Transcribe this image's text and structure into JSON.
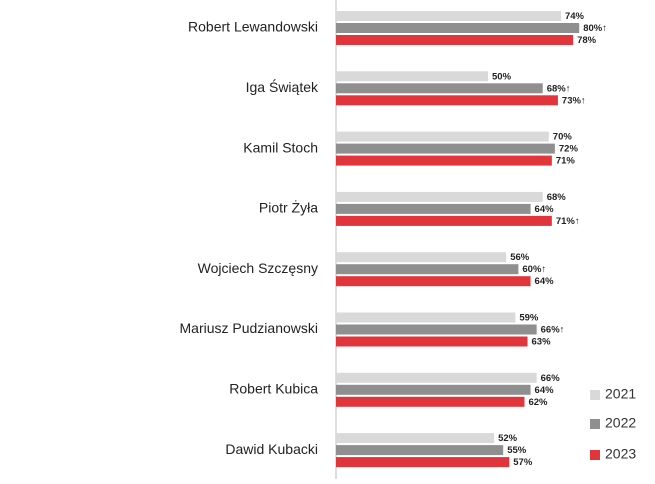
{
  "chart_data": {
    "type": "bar",
    "orientation": "horizontal",
    "categories": [
      "Robert Lewandowski",
      "Iga Świątek",
      "Kamil Stoch",
      "Piotr Żyła",
      "Wojciech Szczęsny",
      "Mariusz Pudzianowski",
      "Robert Kubica",
      "Dawid Kubacki"
    ],
    "series": [
      {
        "name": "2021",
        "color": "#d9d9d9",
        "values": [
          74,
          50,
          70,
          68,
          56,
          59,
          66,
          52
        ],
        "value_labels": [
          "74%",
          "50%",
          "70%",
          "68%",
          "56%",
          "59%",
          "66%",
          "52%"
        ]
      },
      {
        "name": "2022",
        "color": "#8f8f8f",
        "values": [
          80,
          68,
          72,
          64,
          60,
          66,
          64,
          55
        ],
        "value_labels": [
          "80%↑",
          "68%↑",
          "72%",
          "64%",
          "60%↑",
          "66%↑",
          "64%",
          "55%"
        ]
      },
      {
        "name": "2023",
        "color": "#e0353b",
        "values": [
          78,
          73,
          71,
          71,
          64,
          63,
          62,
          57
        ],
        "value_labels": [
          "78%",
          "73%↑",
          "71%",
          "71%↑",
          "64%",
          "63%",
          "62%",
          "57%"
        ]
      }
    ],
    "legend": "lower right"
  }
}
